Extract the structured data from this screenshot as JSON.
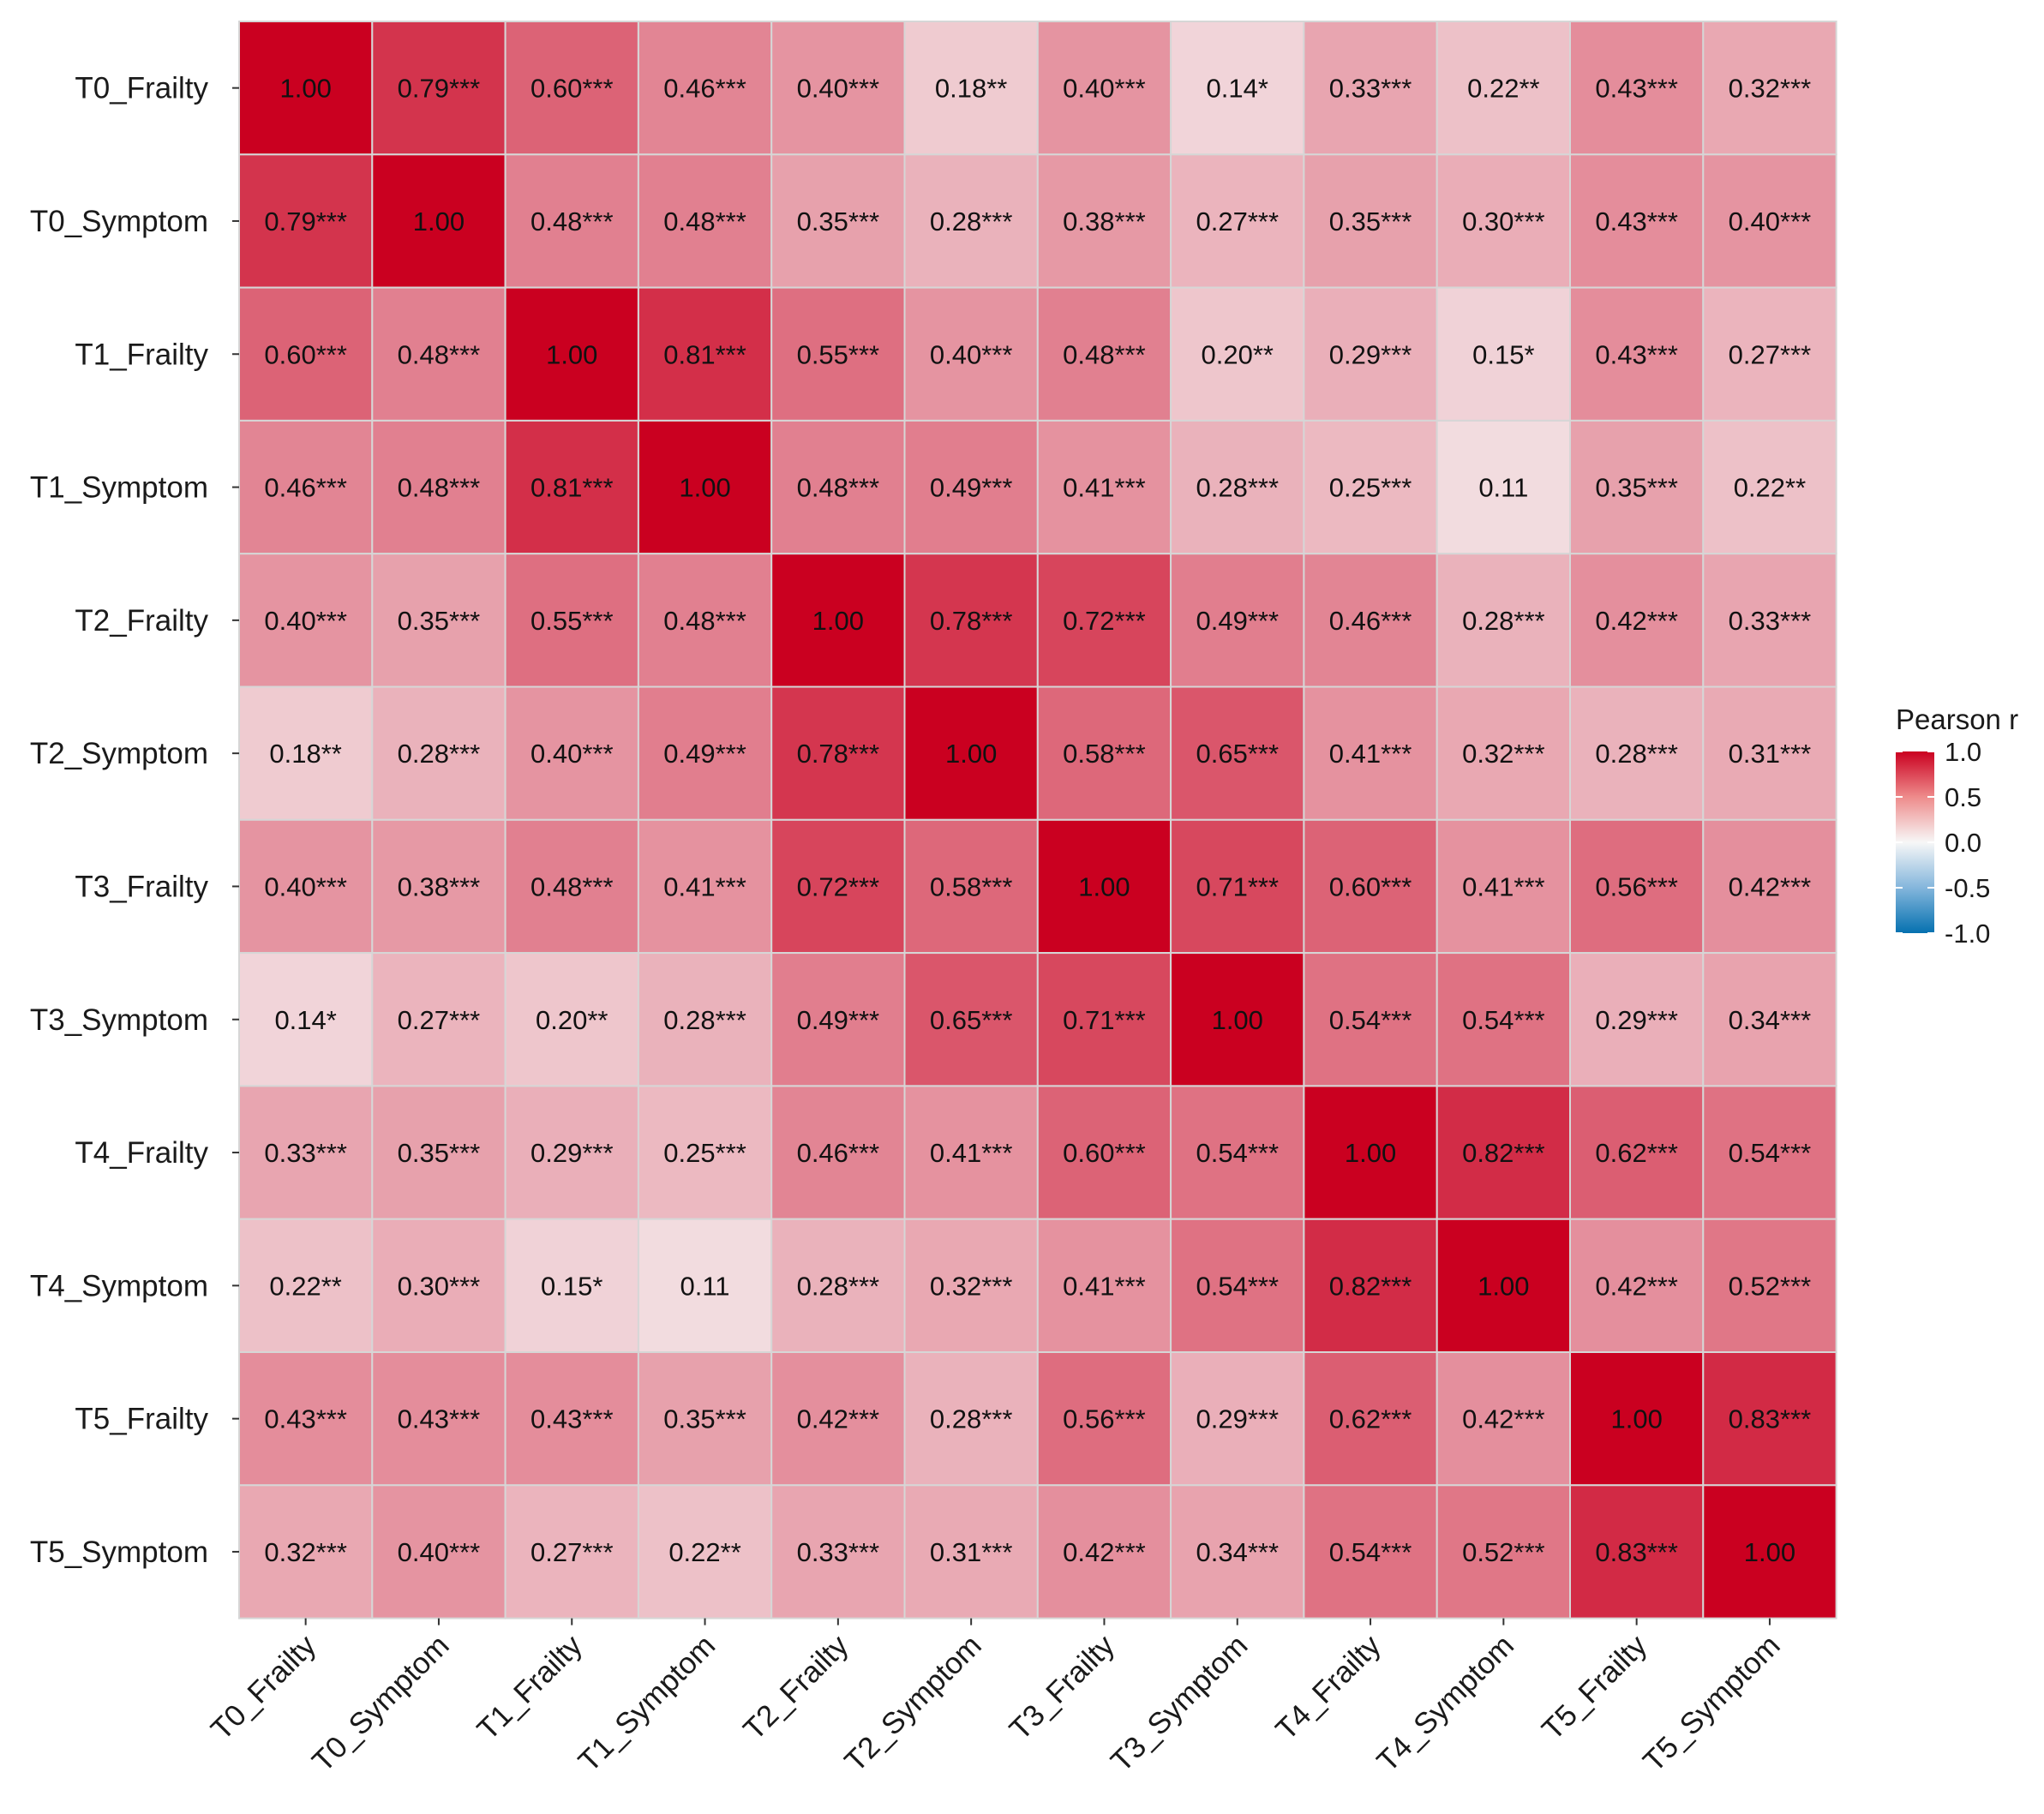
{
  "chart_data": {
    "type": "heatmap",
    "title": "",
    "xlabel": "",
    "ylabel": "",
    "variables": [
      "T0_Frailty",
      "T0_Symptom",
      "T1_Frailty",
      "T1_Symptom",
      "T2_Frailty",
      "T2_Symptom",
      "T3_Frailty",
      "T3_Symptom",
      "T4_Frailty",
      "T4_Symptom",
      "T5_Frailty",
      "T5_Symptom"
    ],
    "values": [
      [
        1.0,
        0.79,
        0.6,
        0.46,
        0.4,
        0.18,
        0.4,
        0.14,
        0.33,
        0.22,
        0.43,
        0.32
      ],
      [
        0.79,
        1.0,
        0.48,
        0.48,
        0.35,
        0.28,
        0.38,
        0.27,
        0.35,
        0.3,
        0.43,
        0.4
      ],
      [
        0.6,
        0.48,
        1.0,
        0.81,
        0.55,
        0.4,
        0.48,
        0.2,
        0.29,
        0.15,
        0.43,
        0.27
      ],
      [
        0.46,
        0.48,
        0.81,
        1.0,
        0.48,
        0.49,
        0.41,
        0.28,
        0.25,
        0.11,
        0.35,
        0.22
      ],
      [
        0.4,
        0.35,
        0.55,
        0.48,
        1.0,
        0.78,
        0.72,
        0.49,
        0.46,
        0.28,
        0.42,
        0.33
      ],
      [
        0.18,
        0.28,
        0.4,
        0.49,
        0.78,
        1.0,
        0.58,
        0.65,
        0.41,
        0.32,
        0.28,
        0.31
      ],
      [
        0.4,
        0.38,
        0.48,
        0.41,
        0.72,
        0.58,
        1.0,
        0.71,
        0.6,
        0.41,
        0.56,
        0.42
      ],
      [
        0.14,
        0.27,
        0.2,
        0.28,
        0.49,
        0.65,
        0.71,
        1.0,
        0.54,
        0.54,
        0.29,
        0.34
      ],
      [
        0.33,
        0.35,
        0.29,
        0.25,
        0.46,
        0.41,
        0.6,
        0.54,
        1.0,
        0.82,
        0.62,
        0.54
      ],
      [
        0.22,
        0.3,
        0.15,
        0.11,
        0.28,
        0.32,
        0.41,
        0.54,
        0.82,
        1.0,
        0.42,
        0.52
      ],
      [
        0.43,
        0.43,
        0.43,
        0.35,
        0.42,
        0.28,
        0.56,
        0.29,
        0.62,
        0.42,
        1.0,
        0.83
      ],
      [
        0.32,
        0.4,
        0.27,
        0.22,
        0.33,
        0.31,
        0.42,
        0.34,
        0.54,
        0.52,
        0.83,
        1.0
      ]
    ],
    "labels": [
      [
        "1.00",
        "0.79***",
        "0.60***",
        "0.46***",
        "0.40***",
        "0.18**",
        "0.40***",
        "0.14*",
        "0.33***",
        "0.22**",
        "0.43***",
        "0.32***"
      ],
      [
        "0.79***",
        "1.00",
        "0.48***",
        "0.48***",
        "0.35***",
        "0.28***",
        "0.38***",
        "0.27***",
        "0.35***",
        "0.30***",
        "0.43***",
        "0.40***"
      ],
      [
        "0.60***",
        "0.48***",
        "1.00",
        "0.81***",
        "0.55***",
        "0.40***",
        "0.48***",
        "0.20**",
        "0.29***",
        "0.15*",
        "0.43***",
        "0.27***"
      ],
      [
        "0.46***",
        "0.48***",
        "0.81***",
        "1.00",
        "0.48***",
        "0.49***",
        "0.41***",
        "0.28***",
        "0.25***",
        "0.11",
        "0.35***",
        "0.22**"
      ],
      [
        "0.40***",
        "0.35***",
        "0.55***",
        "0.48***",
        "1.00",
        "0.78***",
        "0.72***",
        "0.49***",
        "0.46***",
        "0.28***",
        "0.42***",
        "0.33***"
      ],
      [
        "0.18**",
        "0.28***",
        "0.40***",
        "0.49***",
        "0.78***",
        "1.00",
        "0.58***",
        "0.65***",
        "0.41***",
        "0.32***",
        "0.28***",
        "0.31***"
      ],
      [
        "0.40***",
        "0.38***",
        "0.48***",
        "0.41***",
        "0.72***",
        "0.58***",
        "1.00",
        "0.71***",
        "0.60***",
        "0.41***",
        "0.56***",
        "0.42***"
      ],
      [
        "0.14*",
        "0.27***",
        "0.20**",
        "0.28***",
        "0.49***",
        "0.65***",
        "0.71***",
        "1.00",
        "0.54***",
        "0.54***",
        "0.29***",
        "0.34***"
      ],
      [
        "0.33***",
        "0.35***",
        "0.29***",
        "0.25***",
        "0.46***",
        "0.41***",
        "0.60***",
        "0.54***",
        "1.00",
        "0.82***",
        "0.62***",
        "0.54***"
      ],
      [
        "0.22**",
        "0.30***",
        "0.15*",
        "0.11",
        "0.28***",
        "0.32***",
        "0.41***",
        "0.54***",
        "0.82***",
        "1.00",
        "0.42***",
        "0.52***"
      ],
      [
        "0.43***",
        "0.43***",
        "0.43***",
        "0.35***",
        "0.42***",
        "0.28***",
        "0.56***",
        "0.29***",
        "0.62***",
        "0.42***",
        "1.00",
        "0.83***"
      ],
      [
        "0.32***",
        "0.40***",
        "0.27***",
        "0.22**",
        "0.33***",
        "0.31***",
        "0.42***",
        "0.34***",
        "0.54***",
        "0.52***",
        "0.83***",
        "1.00"
      ]
    ],
    "legend": {
      "title": "Pearson r",
      "ticks": [
        "1.0",
        "0.5",
        "0.0",
        "-0.5",
        "-1.0"
      ],
      "range": [
        -1,
        1
      ],
      "placement": "right"
    },
    "colors": {
      "high": "#CA0020",
      "mid": "#F7F7F7",
      "low": "#0571B0",
      "cell_border": "#d6d6d6"
    },
    "grid": false
  }
}
